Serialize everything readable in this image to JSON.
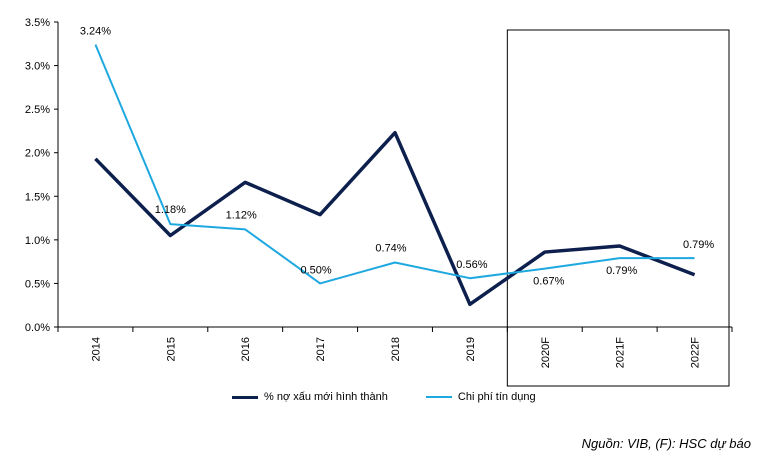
{
  "chart_data": {
    "type": "line",
    "categories": [
      "2014",
      "2015",
      "2016",
      "2017",
      "2018",
      "2019",
      "2020F",
      "2021F",
      "2022F"
    ],
    "series": [
      {
        "name": "% nợ xấu mới hình thành",
        "color": "#0d1f4d",
        "values": [
          1.93,
          1.05,
          1.66,
          1.29,
          2.23,
          0.26,
          0.86,
          0.93,
          0.6
        ]
      },
      {
        "name": "Chi phí tín dụng",
        "color": "#1ea8e0",
        "values": [
          3.24,
          1.18,
          1.12,
          0.5,
          0.74,
          0.56,
          0.67,
          0.79,
          0.79
        ],
        "labels": [
          "3.24%",
          "1.18%",
          "1.12%",
          "0.50%",
          "0.74%",
          "0.56%",
          "0.67%",
          "0.79%",
          "0.79%"
        ]
      }
    ],
    "yticks": [
      "0.0%",
      "0.5%",
      "1.0%",
      "1.5%",
      "2.0%",
      "2.5%",
      "3.0%",
      "3.5%"
    ],
    "ylim": [
      0,
      3.5
    ],
    "forecast_box": [
      "2020F",
      "2022F"
    ],
    "legend_position": "bottom"
  },
  "source_note": "Nguồn: VIB, (F): HSC dự báo"
}
